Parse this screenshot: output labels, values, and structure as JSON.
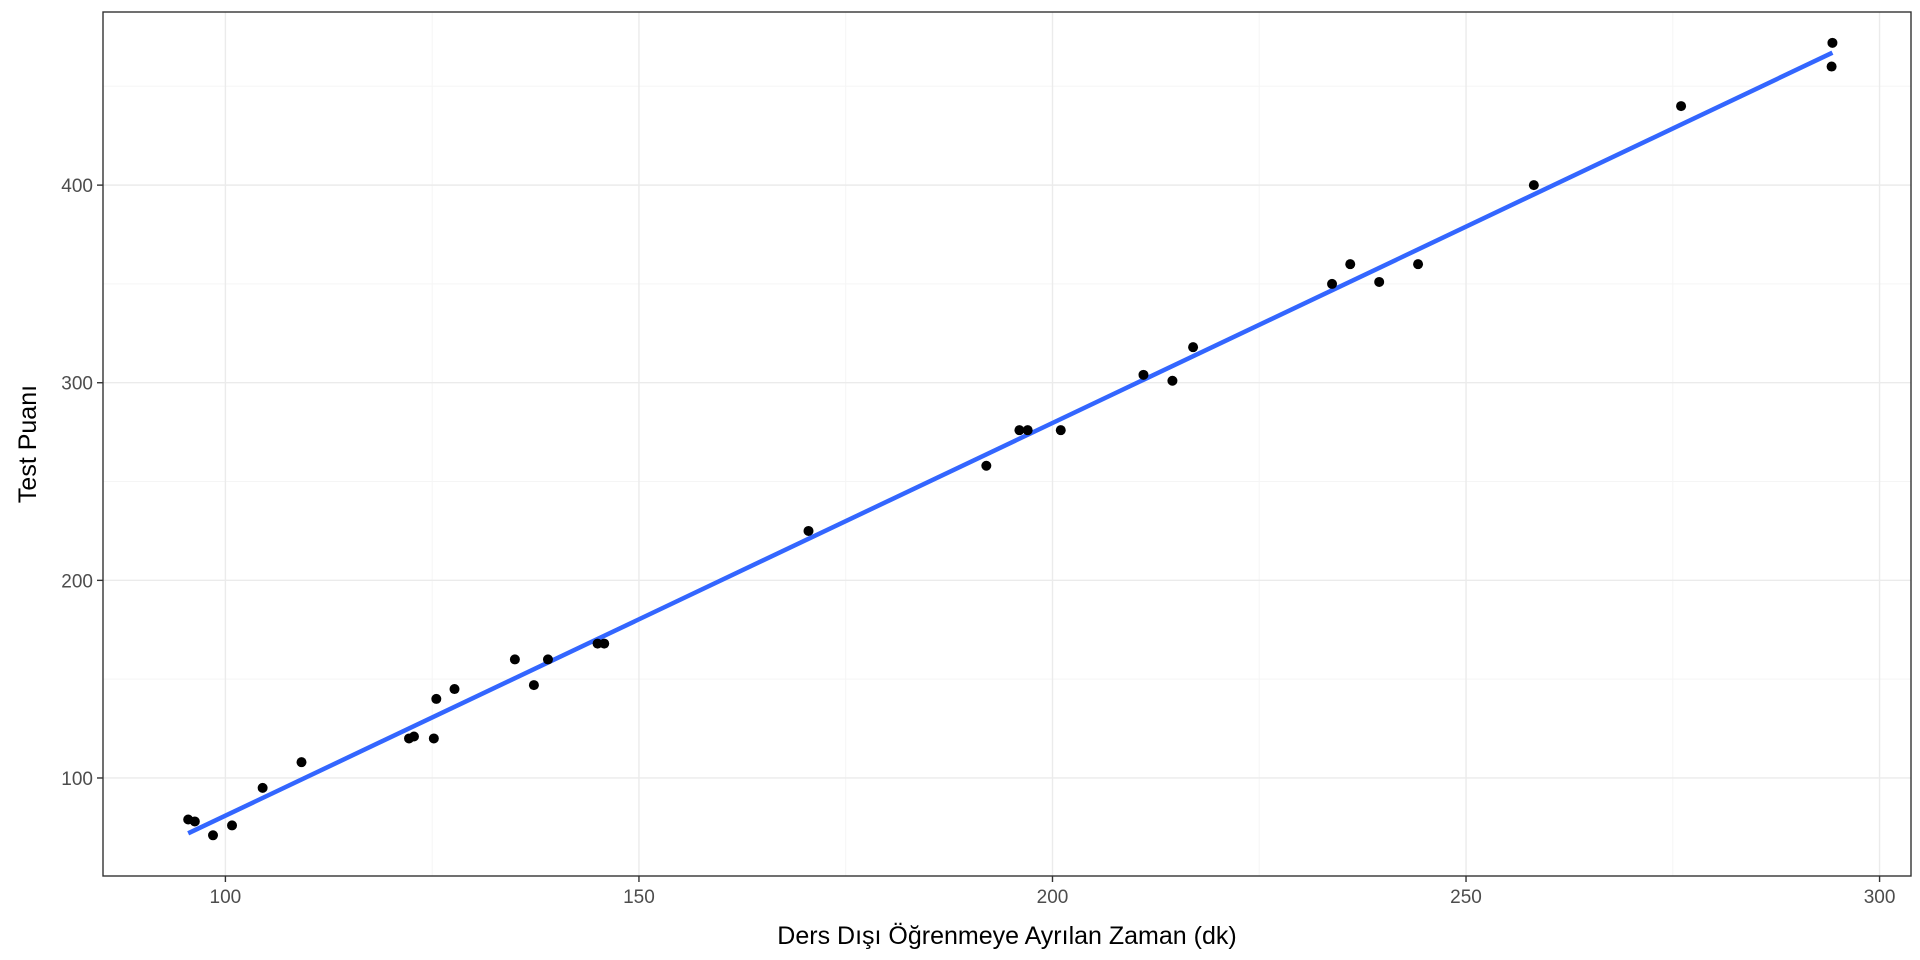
{
  "chart_data": {
    "type": "scatter",
    "title": "",
    "xlabel": "Ders Dışı Öğrenmeye Ayrılan Zaman (dk)",
    "ylabel": "Test Puanı",
    "xlim": [
      85.2,
      303.8
    ],
    "ylim": [
      50.4,
      487.6
    ],
    "x_ticks": [
      100,
      150,
      200,
      250,
      300
    ],
    "y_ticks": [
      100,
      200,
      300,
      400
    ],
    "x_minor_ticks": [
      125,
      175,
      225,
      275
    ],
    "y_minor_ticks": [
      150,
      250,
      350,
      450
    ],
    "grid": true,
    "points": [
      {
        "x": 95.5,
        "y": 79
      },
      {
        "x": 96.3,
        "y": 78
      },
      {
        "x": 98.5,
        "y": 71
      },
      {
        "x": 100.8,
        "y": 76
      },
      {
        "x": 104.5,
        "y": 95
      },
      {
        "x": 109.2,
        "y": 108
      },
      {
        "x": 122.2,
        "y": 120
      },
      {
        "x": 122.8,
        "y": 121
      },
      {
        "x": 125.2,
        "y": 120
      },
      {
        "x": 125.5,
        "y": 140
      },
      {
        "x": 127.7,
        "y": 145
      },
      {
        "x": 135.0,
        "y": 160
      },
      {
        "x": 137.3,
        "y": 147
      },
      {
        "x": 139.0,
        "y": 160
      },
      {
        "x": 145.0,
        "y": 168
      },
      {
        "x": 145.8,
        "y": 168
      },
      {
        "x": 170.5,
        "y": 225
      },
      {
        "x": 192.0,
        "y": 258
      },
      {
        "x": 196.0,
        "y": 276
      },
      {
        "x": 197.0,
        "y": 276
      },
      {
        "x": 201.0,
        "y": 276
      },
      {
        "x": 211.0,
        "y": 304
      },
      {
        "x": 214.5,
        "y": 301
      },
      {
        "x": 217.0,
        "y": 318
      },
      {
        "x": 233.8,
        "y": 350
      },
      {
        "x": 236.0,
        "y": 360
      },
      {
        "x": 239.5,
        "y": 351
      },
      {
        "x": 244.2,
        "y": 360
      },
      {
        "x": 258.2,
        "y": 400
      },
      {
        "x": 276.0,
        "y": 440
      },
      {
        "x": 294.2,
        "y": 460
      },
      {
        "x": 294.3,
        "y": 472
      }
    ],
    "fit_line": {
      "x": [
        95.5,
        294.3
      ],
      "y": [
        72,
        467
      ],
      "color": "#3366ff"
    },
    "colors": {
      "points": "#000000",
      "fit_line": "#3366ff",
      "grid_major": "#ebebeb",
      "grid_minor": "#f5f5f5",
      "panel_border": "#333333",
      "tick_label": "#4d4d4d"
    }
  }
}
